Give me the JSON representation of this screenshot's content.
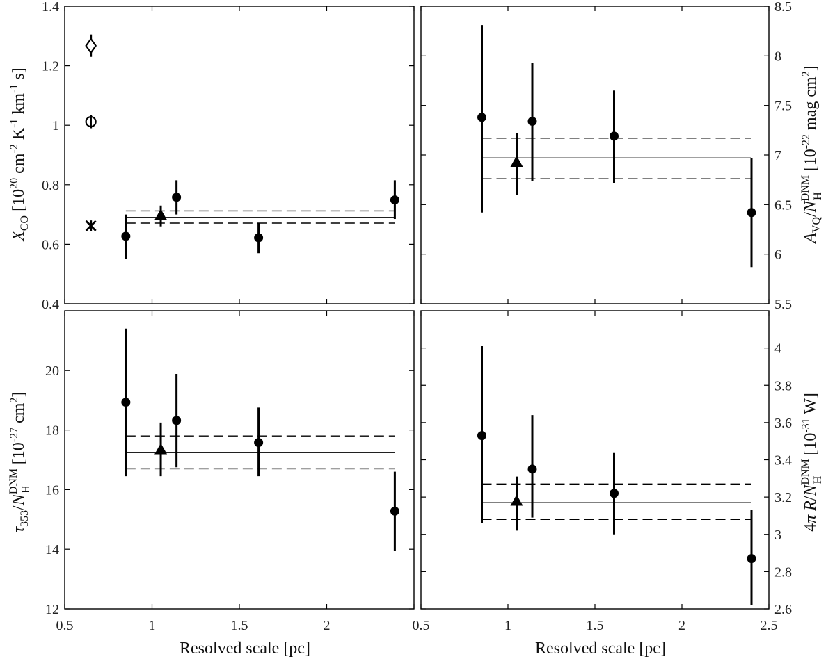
{
  "chart_data": [
    {
      "panel": "top-left",
      "type": "scatter",
      "xlabel": "",
      "ylabel": "X_CO [10^20 cm^-2 K^-1 km^-1 s]",
      "xlim": [
        0.5,
        2.5
      ],
      "ylim": [
        0.4,
        1.4
      ],
      "yticks": [
        "0.4",
        "0.6",
        "0.8",
        "1",
        "1.2",
        "1.4"
      ],
      "points": [
        {
          "x": 0.85,
          "y": 0.627,
          "lo": 0.55,
          "hi": 0.7,
          "marker": "circle"
        },
        {
          "x": 1.05,
          "y": 0.698,
          "lo": 0.66,
          "hi": 0.73,
          "marker": "triangle"
        },
        {
          "x": 1.14,
          "y": 0.758,
          "lo": 0.7,
          "hi": 0.815,
          "marker": "circle"
        },
        {
          "x": 1.61,
          "y": 0.622,
          "lo": 0.57,
          "hi": 0.67,
          "marker": "circle"
        },
        {
          "x": 2.39,
          "y": 0.749,
          "lo": 0.685,
          "hi": 0.815,
          "marker": "circle"
        }
      ],
      "extra_markers": [
        {
          "x": 0.65,
          "y": 1.267,
          "lo": 1.23,
          "hi": 1.305,
          "marker": "diamond"
        },
        {
          "x": 0.65,
          "y": 1.012,
          "lo": 0.99,
          "hi": 1.035,
          "marker": "circle-open"
        },
        {
          "x": 0.65,
          "y": 0.662,
          "lo": 0.645,
          "hi": 0.68,
          "marker": "x"
        }
      ],
      "mean_line": {
        "x0": 0.85,
        "x1": 2.39,
        "y": 0.69,
        "y_lo": 0.671,
        "y_hi": 0.712
      }
    },
    {
      "panel": "top-right",
      "type": "scatter",
      "xlabel": "",
      "ylabel": "A_VQ/N_H^DNM [10^-22 mag cm^2]",
      "xlim": [
        0.5,
        2.5
      ],
      "ylim": [
        5.5,
        8.5
      ],
      "yticks": [
        "5.5",
        "6",
        "6.5",
        "7",
        "7.5",
        "8",
        "8.5"
      ],
      "points": [
        {
          "x": 0.85,
          "y": 7.38,
          "lo": 6.42,
          "hi": 8.31,
          "marker": "circle"
        },
        {
          "x": 1.05,
          "y": 6.93,
          "lo": 6.6,
          "hi": 7.22,
          "marker": "triangle"
        },
        {
          "x": 1.14,
          "y": 7.34,
          "lo": 6.74,
          "hi": 7.93,
          "marker": "circle"
        },
        {
          "x": 1.61,
          "y": 7.19,
          "lo": 6.72,
          "hi": 7.65,
          "marker": "circle"
        },
        {
          "x": 2.4,
          "y": 6.42,
          "lo": 5.87,
          "hi": 6.97,
          "marker": "circle"
        }
      ],
      "mean_line": {
        "x0": 0.85,
        "x1": 2.4,
        "y": 6.97,
        "y_lo": 6.76,
        "y_hi": 7.17
      }
    },
    {
      "panel": "bottom-left",
      "type": "scatter",
      "xlabel": "Resolved scale [pc]",
      "ylabel": "τ353/N_H^DNM [10^-27 cm^2]",
      "xlim": [
        0.5,
        2.5
      ],
      "ylim": [
        12,
        22
      ],
      "xticks": [
        "0.5",
        "1",
        "1.5",
        "2"
      ],
      "yticks": [
        "12",
        "14",
        "16",
        "18",
        "20"
      ],
      "points": [
        {
          "x": 0.85,
          "y": 18.93,
          "lo": 16.45,
          "hi": 21.4,
          "marker": "circle"
        },
        {
          "x": 1.05,
          "y": 17.35,
          "lo": 16.45,
          "hi": 18.25,
          "marker": "triangle"
        },
        {
          "x": 1.14,
          "y": 18.32,
          "lo": 16.75,
          "hi": 19.88,
          "marker": "circle"
        },
        {
          "x": 1.61,
          "y": 17.58,
          "lo": 16.45,
          "hi": 18.75,
          "marker": "circle"
        },
        {
          "x": 2.39,
          "y": 15.28,
          "lo": 13.95,
          "hi": 16.6,
          "marker": "circle"
        }
      ],
      "mean_line": {
        "x0": 0.85,
        "x1": 2.39,
        "y": 17.25,
        "y_lo": 16.7,
        "y_hi": 17.8
      }
    },
    {
      "panel": "bottom-right",
      "type": "scatter",
      "xlabel": "Resolved scale [pc]",
      "ylabel": "4π R/N_H^DNM [10^-31 W]",
      "xlim": [
        0.5,
        2.5
      ],
      "ylim": [
        2.6,
        4.2
      ],
      "xticks": [
        "0.5",
        "1",
        "1.5",
        "2",
        "2.5"
      ],
      "yticks": [
        "2.6",
        "2.8",
        "3",
        "3.2",
        "3.4",
        "3.6",
        "3.8",
        "4"
      ],
      "points": [
        {
          "x": 0.85,
          "y": 3.53,
          "lo": 3.06,
          "hi": 4.01,
          "marker": "circle"
        },
        {
          "x": 1.05,
          "y": 3.18,
          "lo": 3.02,
          "hi": 3.31,
          "marker": "triangle"
        },
        {
          "x": 1.14,
          "y": 3.35,
          "lo": 3.09,
          "hi": 3.64,
          "marker": "circle"
        },
        {
          "x": 1.61,
          "y": 3.22,
          "lo": 3.0,
          "hi": 3.44,
          "marker": "circle"
        },
        {
          "x": 2.4,
          "y": 2.87,
          "lo": 2.62,
          "hi": 3.13,
          "marker": "circle"
        }
      ],
      "mean_line": {
        "x0": 0.85,
        "x1": 2.4,
        "y": 3.17,
        "y_lo": 3.08,
        "y_hi": 3.27
      }
    }
  ]
}
